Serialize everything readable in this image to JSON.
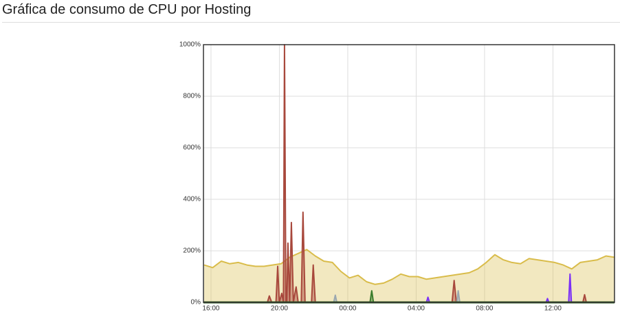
{
  "chart_data": {
    "type": "area",
    "title": "Gráfica de consumo de CPU por Hosting",
    "xlim": [
      15.56,
      39.6
    ],
    "xticks": [
      {
        "value": 16,
        "label": "16:00"
      },
      {
        "value": 20,
        "label": "20:00"
      },
      {
        "value": 24,
        "label": "00:00"
      },
      {
        "value": 28,
        "label": "04:00"
      },
      {
        "value": 32,
        "label": "08:00"
      },
      {
        "value": 36,
        "label": "12:00"
      }
    ],
    "ylim": [
      0,
      1000
    ],
    "yticks": [
      {
        "value": 0,
        "label": "0%"
      },
      {
        "value": 200,
        "label": "200%"
      },
      {
        "value": 400,
        "label": "400%"
      },
      {
        "value": 600,
        "label": "600%"
      },
      {
        "value": 800,
        "label": "800%"
      },
      {
        "value": 1000,
        "label": "1000%"
      }
    ],
    "grid": true,
    "series": [
      {
        "color": "#d9bc4a",
        "x": [
          15.6,
          16.1,
          16.6,
          17.1,
          17.6,
          18.1,
          18.6,
          19.1,
          19.6,
          20.1,
          20.6,
          21.1,
          21.6,
          22.1,
          22.6,
          23.1,
          23.6,
          24.1,
          24.6,
          25.1,
          25.6,
          26.1,
          26.6,
          27.1,
          27.6,
          28.1,
          28.6,
          29.1,
          29.6,
          30.1,
          30.6,
          31.1,
          31.6,
          32.1,
          32.6,
          33.1,
          33.6,
          34.1,
          34.6,
          35.1,
          35.6,
          36.1,
          36.6,
          37.1,
          37.6,
          38.1,
          38.6,
          39.1,
          39.6
        ],
        "values": [
          145,
          135,
          160,
          150,
          155,
          145,
          140,
          140,
          145,
          150,
          175,
          190,
          205,
          180,
          160,
          155,
          120,
          95,
          105,
          80,
          70,
          75,
          90,
          110,
          100,
          100,
          90,
          95,
          100,
          105,
          110,
          115,
          130,
          155,
          185,
          165,
          155,
          150,
          170,
          165,
          160,
          155,
          145,
          130,
          155,
          160,
          165,
          180,
          175
        ]
      },
      {
        "color": "#a8483c",
        "x": [
          15.6,
          19.3,
          19.41,
          19.55,
          19.8,
          19.9,
          20.0,
          20.14,
          20.24,
          20.3,
          20.38,
          20.44,
          20.5,
          20.6,
          20.7,
          20.82,
          20.98,
          21.1,
          21.28,
          21.38,
          21.5,
          21.88,
          21.98,
          22.1,
          30.1,
          30.22,
          30.35,
          37.75,
          37.85,
          37.95,
          39.6
        ],
        "values": [
          0,
          0,
          25,
          0,
          0,
          140,
          0,
          35,
          0,
          1000,
          0,
          0,
          230,
          0,
          310,
          0,
          60,
          0,
          0,
          350,
          0,
          0,
          145,
          0,
          0,
          85,
          0,
          0,
          30,
          0,
          0
        ]
      },
      {
        "color": "#3a7d2c",
        "x": [
          15.6,
          25.3,
          25.4,
          25.5,
          39.6
        ],
        "values": [
          0,
          0,
          45,
          0,
          0
        ]
      },
      {
        "color": "#7b2ff7",
        "x": [
          15.6,
          28.6,
          28.69,
          28.78,
          35.6,
          35.68,
          35.76,
          36.92,
          37.0,
          37.08,
          39.6
        ],
        "values": [
          0,
          0,
          20,
          0,
          0,
          15,
          0,
          0,
          110,
          0,
          0
        ]
      },
      {
        "color": "#9aa7b0",
        "x": [
          15.6,
          23.18,
          23.27,
          23.36,
          30.38,
          30.46,
          30.55,
          39.6
        ],
        "values": [
          0,
          0,
          28,
          0,
          0,
          45,
          0,
          0
        ]
      }
    ]
  }
}
